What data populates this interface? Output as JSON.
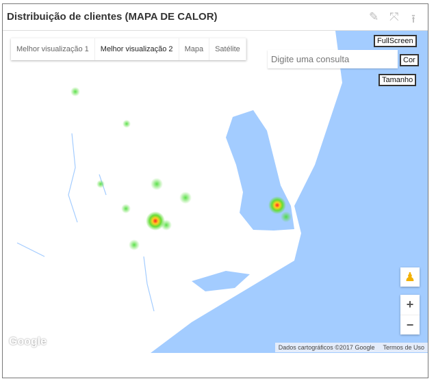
{
  "header": {
    "title": "Distribuição de clientes (MAPA DE CALOR)",
    "icons": [
      "pencil-icon",
      "fullscreen-icon",
      "upload-icon"
    ]
  },
  "map": {
    "map_types": [
      {
        "label": "Melhor visualização 1",
        "active": false
      },
      {
        "label": "Melhor visualização 2",
        "active": true
      },
      {
        "label": "Mapa",
        "active": false
      },
      {
        "label": "Satélite",
        "active": false
      }
    ],
    "search_placeholder": "Digite uma consulta",
    "buttons": {
      "fullscreen": "FullScreen",
      "color": "Cor",
      "size": "Tamanho"
    },
    "zoom_in": "+",
    "zoom_out": "−",
    "logo": "Google",
    "attribution": "Dados cartográficos ©2017 Google",
    "terms": "Termos de Uso",
    "colors": {
      "water": "#a3ccff",
      "land": "#ffffff",
      "heat_low": "#66dd44",
      "heat_high": "#ff2222"
    }
  }
}
